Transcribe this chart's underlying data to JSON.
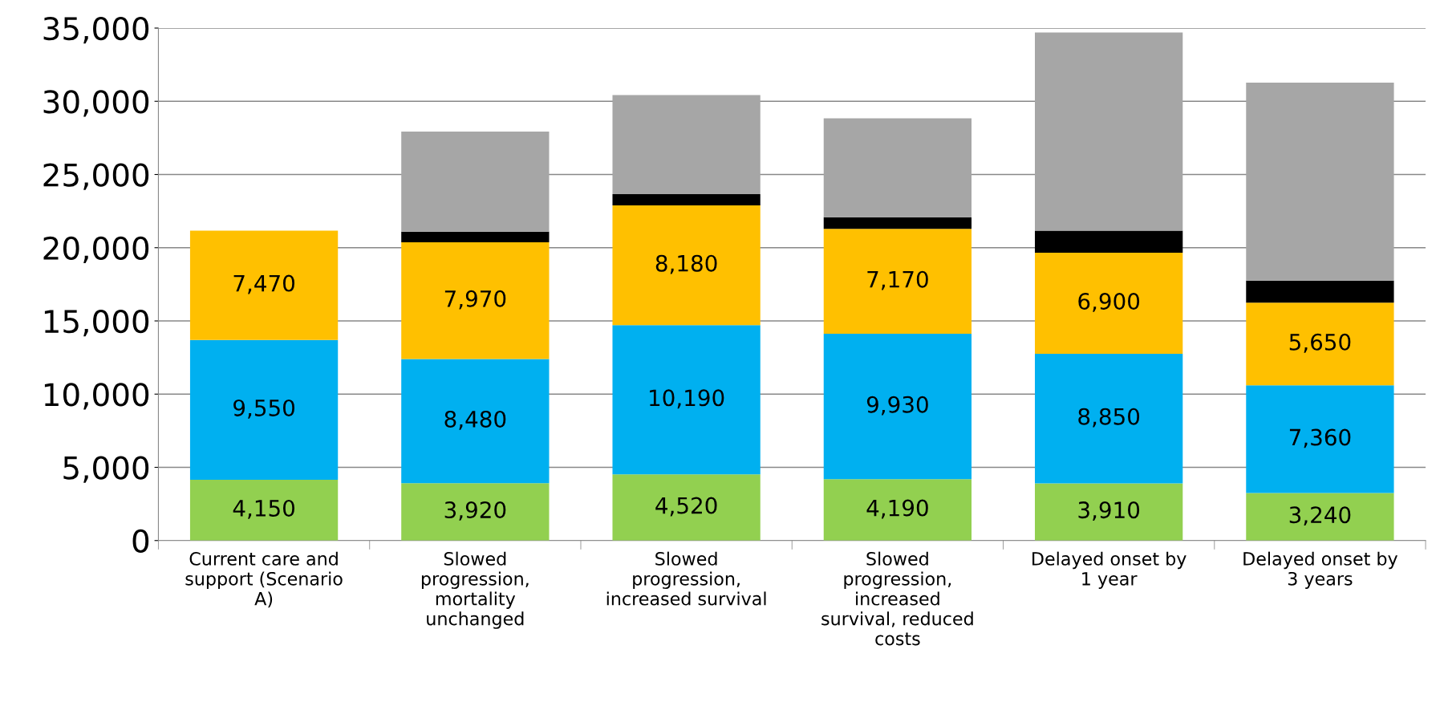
{
  "chart_data": {
    "type": "bar",
    "stacked": true,
    "categories": [
      "Current care and\nsupport (Scenario\nA)",
      "Slowed\nprogression,\nmortality\nunchanged",
      "Slowed\nprogression,\nincreased survival",
      "Slowed\nprogression,\nincreased\nsurvival, reduced\ncosts",
      "Delayed onset by\n1 year",
      "Delayed onset by\n3 years"
    ],
    "series": [
      {
        "color": "#92d050",
        "values": [
          4150,
          3920,
          4520,
          4190,
          3910,
          3240
        ],
        "value_labels": [
          "4,150",
          "3,920",
          "4,520",
          "4,190",
          "3,910",
          "3,240"
        ]
      },
      {
        "color": "#00b0f0",
        "values": [
          9550,
          8480,
          10190,
          9930,
          8850,
          7360
        ],
        "value_labels": [
          "9,550",
          "8,480",
          "10,190",
          "9,930",
          "8,850",
          "7,360"
        ]
      },
      {
        "color": "#ffc000",
        "values": [
          7470,
          7970,
          8180,
          7170,
          6900,
          5650
        ],
        "value_labels": [
          "7,470",
          "7,970",
          "8,180",
          "7,170",
          "6,900",
          "5,650"
        ]
      },
      {
        "color": "#000000",
        "values": [
          null,
          730,
          770,
          790,
          1500,
          1500
        ]
      },
      {
        "color": "#a6a6a6",
        "values": [
          null,
          6830,
          6770,
          6760,
          13540,
          13530
        ]
      }
    ],
    "ylim": [
      0,
      35000
    ],
    "yticks": [
      {
        "value": 0,
        "label": "0"
      },
      {
        "value": 5000,
        "label": "5,000"
      },
      {
        "value": 10000,
        "label": "10,000"
      },
      {
        "value": 15000,
        "label": "15,000"
      },
      {
        "value": 20000,
        "label": "20,000"
      },
      {
        "value": 25000,
        "label": "25,000"
      },
      {
        "value": 30000,
        "label": "30,000"
      },
      {
        "value": 35000,
        "label": "35,000"
      }
    ],
    "grid": "y"
  }
}
